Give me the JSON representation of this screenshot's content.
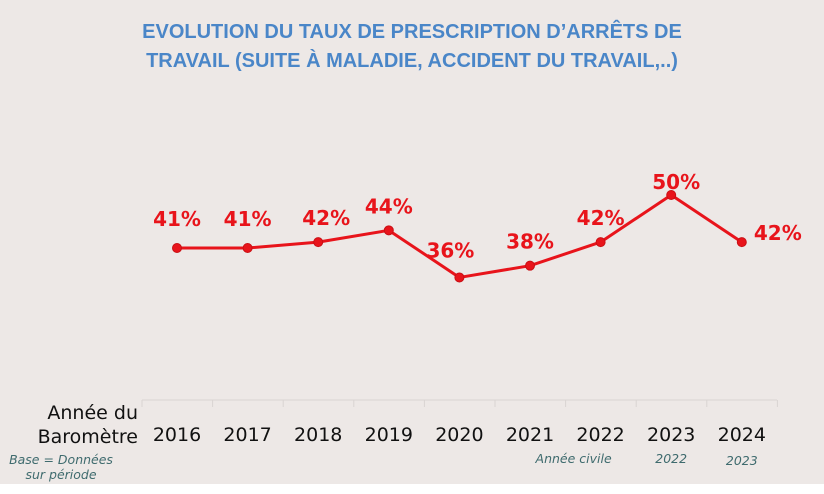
{
  "chart_data": {
    "type": "line",
    "title_line1": "EVOLUTION DU TAUX DE PRESCRIPTION D’ARRÊTS DE",
    "title_line2": "TRAVAIL (SUITE À MALADIE, ACCIDENT DU TRAVAIL,..)",
    "xlabel_line1": "Année du",
    "xlabel_line2": "Baromètre",
    "base_note_line1": "Base = Données",
    "base_note_line2": "sur période",
    "categories": [
      "2016",
      "2017",
      "2018",
      "2019",
      "2020",
      "2021",
      "2022",
      "2023",
      "2024"
    ],
    "series": [
      {
        "name": "Taux de prescription d'arrêts de travail",
        "values": [
          41,
          41,
          42,
          44,
          36,
          38,
          42,
          50,
          42
        ],
        "unit": "%",
        "color": "#e8141b"
      }
    ],
    "data_labels": [
      "41%",
      "41%",
      "42%",
      "44%",
      "36%",
      "38%",
      "42%",
      "50%",
      "42%"
    ],
    "sub_labels": [
      {
        "category": "2022",
        "text": "Année civile"
      },
      {
        "category": "2023",
        "text": "2022"
      },
      {
        "category": "2024",
        "text": "2023"
      }
    ],
    "ylim": [
      0,
      55
    ],
    "grid": false,
    "legend": "none"
  }
}
